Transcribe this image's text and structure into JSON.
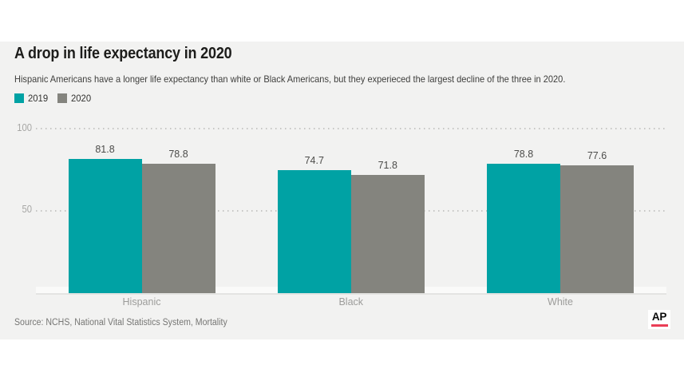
{
  "page": {
    "background": "#ffffff",
    "panel_background": "#f2f2f1"
  },
  "header": {
    "title": "A drop in life expectancy in 2020",
    "subtitle": "Hispanic Americans have a longer life expectancy than white or Black Americans, but they experieced the largest decline of the three in 2020."
  },
  "legend": [
    {
      "label": "2019",
      "color": "#00a2a4"
    },
    {
      "label": "2020",
      "color": "#84847e"
    }
  ],
  "chart_data": {
    "type": "bar",
    "title": "A drop in life expectancy in 2020",
    "categories": [
      "Hispanic",
      "Black",
      "White"
    ],
    "series": [
      {
        "name": "2019",
        "color": "#00a2a4",
        "values": [
          81.8,
          74.7,
          78.8
        ]
      },
      {
        "name": "2020",
        "color": "#84847e",
        "values": [
          78.8,
          71.8,
          77.6
        ]
      }
    ],
    "ylim": [
      0,
      100
    ],
    "yticks": [
      50,
      100
    ],
    "grid": "dotted-horizontal",
    "legend_position": "top-left",
    "value_labels": true
  },
  "footer": {
    "source": "Source: NCHS, National Vital Statistics System, Mortality",
    "logo_text": "AP",
    "logo_accent_color": "#ea3e56"
  }
}
